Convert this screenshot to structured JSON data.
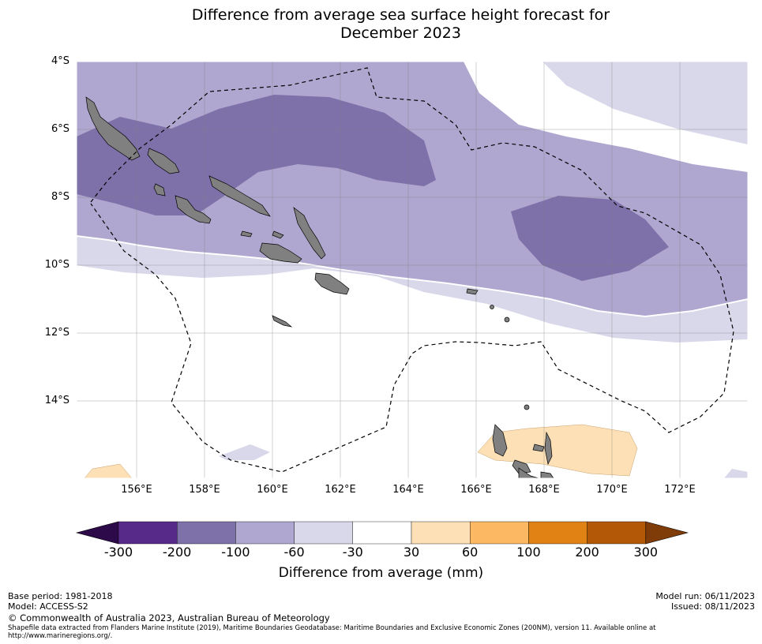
{
  "title_line1": "Difference from average sea surface height forecast for",
  "title_line2": "December 2023",
  "lat_labels": [
    "4°S",
    "6°S",
    "8°S",
    "10°S",
    "12°S",
    "14°S"
  ],
  "lon_labels": [
    "156°E",
    "158°E",
    "160°E",
    "162°E",
    "164°E",
    "166°E",
    "168°E",
    "170°E",
    "172°E"
  ],
  "colorbar": {
    "title": "Difference from average (mm)",
    "ticks": [
      "-300",
      "-200",
      "-100",
      "-60",
      "-30",
      "30",
      "60",
      "100",
      "200",
      "300"
    ],
    "colors": [
      "#2d0a4a",
      "#572a8a",
      "#7e70a9",
      "#afa7cf",
      "#d8d8ea",
      "#ffffff",
      "#fee0b6",
      "#fdb863",
      "#e08214",
      "#b35806",
      "#7f3b08"
    ]
  },
  "footer": {
    "base_period": "Base period: 1981-2018",
    "model": "Model: ACCESS-S2",
    "model_run": "Model run: 06/11/2023",
    "issued": "Issued: 08/11/2023",
    "copyright": "© Commonwealth of Australia 2023, Australian Bureau of Meteorology",
    "shapefile": "Shapefile data extracted from Flanders Marine Institute (2019), Maritime Boundaries Geodatabase: Maritime Boundaries and Exclusive Economic Zones (200NM), version 11. Available online at http://www.marineregions.org/."
  }
}
